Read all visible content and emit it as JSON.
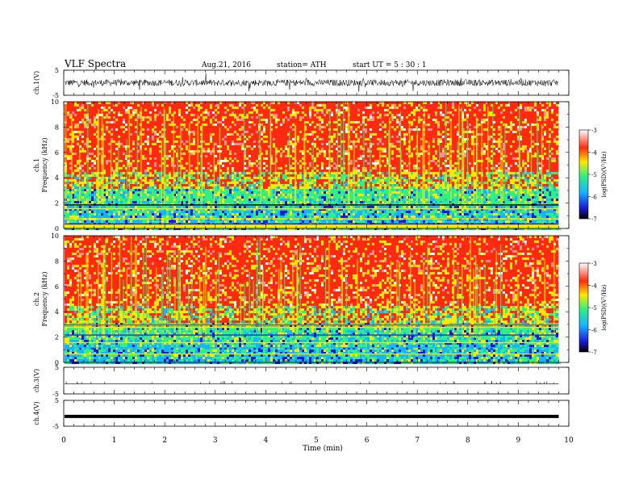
{
  "header": {
    "title": "VLF  Spectra",
    "date": "Aug.21, 2016",
    "station": "station= ATH",
    "start_ut": "start  UT  =   5  : 30 : 1"
  },
  "chart_data": [
    {
      "type": "line",
      "panel": "ch1-waveform",
      "ylabel": "ch.1(V)",
      "ylim": [
        -5,
        5
      ],
      "y_ticks": [
        "5",
        "-5"
      ],
      "description_of_values": "dense oscillating waveform between about -1.5 and 1.5 V"
    },
    {
      "type": "heatmap",
      "panel": "ch1-spectrogram",
      "ylabel": "Frequency  (kHz)",
      "channel_label": "ch.1",
      "ylim": [
        0,
        10
      ],
      "y_ticks": [
        "0",
        "2",
        "4",
        "6",
        "8",
        "10"
      ],
      "colorbar": {
        "label": "log(PSD)(V²/Hz)",
        "range": [
          -7,
          -3
        ],
        "ticks": [
          "-3",
          "-4",
          "-5",
          "-6",
          "-7"
        ],
        "colors": [
          "#000000",
          "#1a1ad8",
          "#19b4ff",
          "#30ef83",
          "#ffe800",
          "#ff2a10",
          "#ffffff"
        ]
      }
    },
    {
      "type": "heatmap",
      "panel": "ch2-spectrogram",
      "ylabel": "Frequency  (kHz)",
      "channel_label": "ch.2",
      "ylim": [
        0,
        10
      ],
      "y_ticks": [
        "0",
        "2",
        "4",
        "6",
        "8",
        "10"
      ],
      "colorbar": {
        "label": "log(PSD)(V²/Hz)",
        "range": [
          -7,
          -3
        ],
        "ticks": [
          "-3",
          "-4",
          "-5",
          "-6",
          "-7"
        ]
      }
    },
    {
      "type": "line",
      "panel": "ch3-waveform",
      "ylabel": "ch.3(V)",
      "ylim": [
        -5,
        5
      ],
      "y_ticks": [
        "5",
        "-5"
      ],
      "description_of_values": "flat near -1 V with small spikes"
    },
    {
      "type": "line",
      "panel": "ch4-waveform",
      "ylabel": "ch.4(V)",
      "ylim": [
        -5,
        5
      ],
      "y_ticks": [
        "5",
        "-5"
      ],
      "description_of_values": "thick flat line near -1 V"
    }
  ],
  "xaxis": {
    "label": "Time  (min)",
    "range": [
      0,
      10
    ],
    "ticks": [
      "0",
      "1",
      "2",
      "3",
      "4",
      "5",
      "6",
      "7",
      "8",
      "9",
      "10"
    ],
    "data_end": 9.8
  }
}
